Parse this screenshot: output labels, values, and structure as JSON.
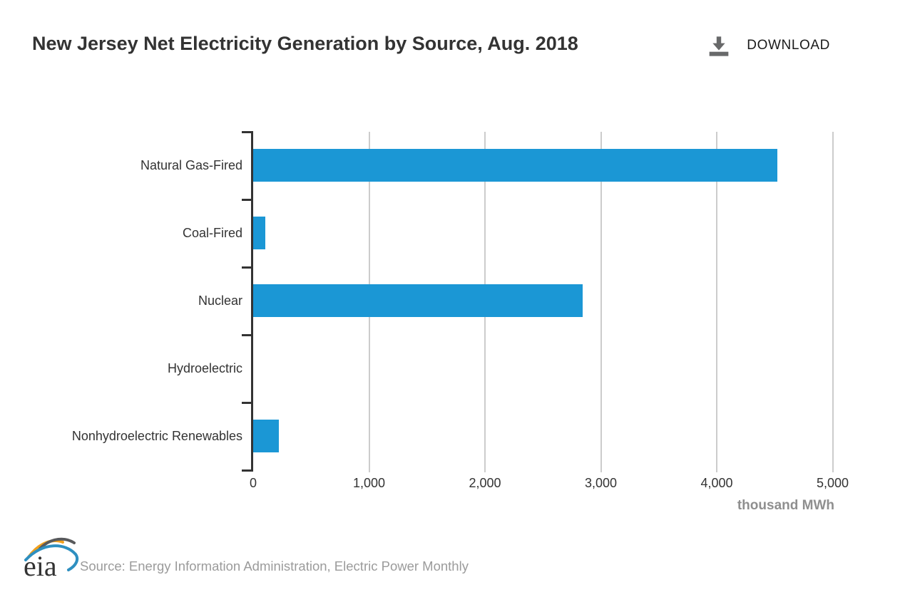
{
  "header": {
    "title": "New Jersey Net Electricity Generation by Source, Aug. 2018",
    "download_label": "DOWNLOAD"
  },
  "chart_data": {
    "type": "bar",
    "orientation": "horizontal",
    "title": "New Jersey Net Electricity Generation by Source, Aug. 2018",
    "categories": [
      "Natural Gas-Fired",
      "Coal-Fired",
      "Nuclear",
      "Hydroelectric",
      "Nonhydroelectric Renewables"
    ],
    "values": [
      4520,
      105,
      2840,
      0,
      220
    ],
    "xlabel": "thousand MWh",
    "ylabel": "",
    "xlim": [
      0,
      5000
    ],
    "xticks": [
      0,
      1000,
      2000,
      3000,
      4000,
      5000
    ],
    "xtick_labels": [
      "0",
      "1,000",
      "2,000",
      "3,000",
      "4,000",
      "5,000"
    ],
    "grid": "vertical gridlines at x ticks",
    "legend": "none",
    "colors": {
      "bar": "#1b97d5",
      "gridline": "#cccccc",
      "axis": "#333333",
      "tick_label": "#333333",
      "unit_label": "#8f8f8f"
    }
  },
  "footer": {
    "logo_text": "eia",
    "source": "Source: Energy Information Administration, Electric Power Monthly"
  }
}
